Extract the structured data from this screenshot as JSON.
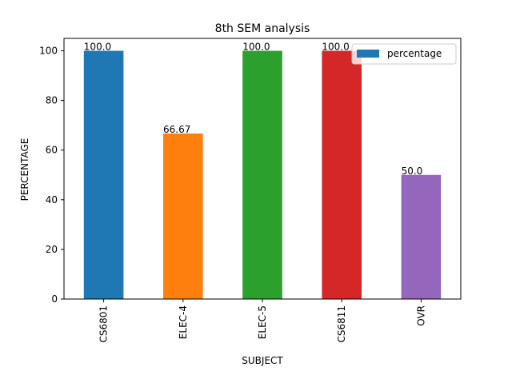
{
  "chart_data": {
    "type": "bar",
    "title": "8th SEM analysis",
    "xlabel": "SUBJECT",
    "ylabel": "PERCENTAGE",
    "categories": [
      "CS6801",
      "ELEC-4",
      "ELEC-5",
      "CS6811",
      "OVR"
    ],
    "series": [
      {
        "name": "percentage",
        "values": [
          100.0,
          66.67,
          100.0,
          100.0,
          50.0
        ]
      }
    ],
    "data_labels": [
      "100.0",
      "66.67",
      "100.0",
      "100.0",
      "50.0"
    ],
    "bar_colors": [
      "#1f77b4",
      "#ff7f0e",
      "#2ca02c",
      "#d62728",
      "#9467bd"
    ],
    "legend_color": "#1f77b4",
    "y_ticks": [
      0,
      20,
      40,
      60,
      80,
      100
    ],
    "ylim": [
      0,
      105
    ],
    "grid": false,
    "legend_position": "top-right"
  }
}
